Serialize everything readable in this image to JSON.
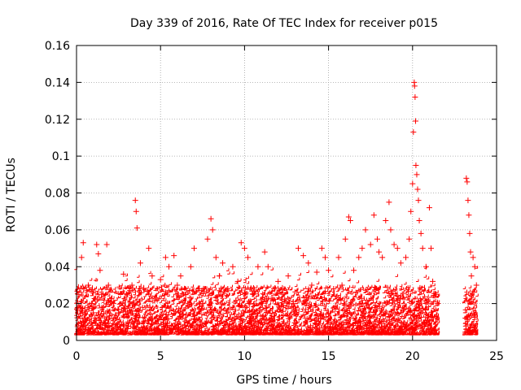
{
  "chart_data": {
    "type": "scatter",
    "title": "Day 339 of 2016, Rate Of TEC Index for receiver p015",
    "xlabel": "GPS time / hours",
    "ylabel": "ROTI / TECUs",
    "xlim": [
      0,
      25
    ],
    "ylim": [
      0,
      0.16
    ],
    "xticks": [
      0,
      5,
      10,
      15,
      20,
      25
    ],
    "xtick_labels": [
      "0",
      "5",
      "10",
      "15",
      "20",
      "25"
    ],
    "yticks": [
      0,
      0.02,
      0.04,
      0.06,
      0.08,
      0.1,
      0.12,
      0.14,
      0.16
    ],
    "ytick_labels": [
      "0",
      "0.02",
      "0.04",
      "0.06",
      "0.08",
      "0.1",
      "0.12",
      "0.14",
      "0.16"
    ],
    "grid": true,
    "marker": "+",
    "color": "#ff0000",
    "series": [
      {
        "points": [
          [
            0.1,
            0.025
          ],
          [
            0.2,
            0.018
          ],
          [
            0.3,
            0.045
          ],
          [
            0.4,
            0.053
          ],
          [
            0.5,
            0.012
          ],
          [
            0.7,
            0.03
          ],
          [
            0.9,
            0.02
          ],
          [
            1.0,
            0.015
          ],
          [
            1.2,
            0.052
          ],
          [
            1.3,
            0.047
          ],
          [
            1.4,
            0.038
          ],
          [
            1.5,
            0.025
          ],
          [
            1.8,
            0.052
          ],
          [
            1.9,
            0.03
          ],
          [
            2.2,
            0.02
          ],
          [
            2.5,
            0.015
          ],
          [
            2.8,
            0.036
          ],
          [
            3.0,
            0.025
          ],
          [
            3.3,
            0.03
          ],
          [
            3.5,
            0.076
          ],
          [
            3.55,
            0.07
          ],
          [
            3.6,
            0.061
          ],
          [
            3.8,
            0.042
          ],
          [
            4.0,
            0.028
          ],
          [
            4.3,
            0.05
          ],
          [
            4.5,
            0.035
          ],
          [
            4.8,
            0.022
          ],
          [
            5.0,
            0.033
          ],
          [
            5.3,
            0.045
          ],
          [
            5.5,
            0.04
          ],
          [
            5.8,
            0.046
          ],
          [
            6.0,
            0.03
          ],
          [
            6.2,
            0.035
          ],
          [
            6.5,
            0.025
          ],
          [
            6.8,
            0.04
          ],
          [
            7.0,
            0.05
          ],
          [
            7.3,
            0.028
          ],
          [
            7.5,
            0.02
          ],
          [
            7.8,
            0.055
          ],
          [
            8.0,
            0.066
          ],
          [
            8.1,
            0.06
          ],
          [
            8.3,
            0.045
          ],
          [
            8.5,
            0.035
          ],
          [
            8.7,
            0.042
          ],
          [
            9.0,
            0.028
          ],
          [
            9.3,
            0.04
          ],
          [
            9.6,
            0.032
          ],
          [
            9.8,
            0.053
          ],
          [
            10.0,
            0.05
          ],
          [
            10.2,
            0.045
          ],
          [
            10.5,
            0.025
          ],
          [
            10.8,
            0.04
          ],
          [
            11.0,
            0.02
          ],
          [
            11.2,
            0.048
          ],
          [
            11.4,
            0.04
          ],
          [
            11.7,
            0.022
          ],
          [
            12.0,
            0.032
          ],
          [
            12.3,
            0.025
          ],
          [
            12.6,
            0.035
          ],
          [
            12.9,
            0.02
          ],
          [
            13.2,
            0.05
          ],
          [
            13.5,
            0.046
          ],
          [
            13.8,
            0.042
          ],
          [
            14.0,
            0.03
          ],
          [
            14.3,
            0.037
          ],
          [
            14.6,
            0.05
          ],
          [
            14.8,
            0.045
          ],
          [
            15.0,
            0.038
          ],
          [
            15.3,
            0.028
          ],
          [
            15.6,
            0.045
          ],
          [
            15.8,
            0.03
          ],
          [
            16.0,
            0.055
          ],
          [
            16.2,
            0.067
          ],
          [
            16.3,
            0.065
          ],
          [
            16.5,
            0.038
          ],
          [
            16.8,
            0.045
          ],
          [
            17.0,
            0.05
          ],
          [
            17.2,
            0.06
          ],
          [
            17.5,
            0.052
          ],
          [
            17.7,
            0.068
          ],
          [
            17.9,
            0.055
          ],
          [
            18.0,
            0.048
          ],
          [
            18.2,
            0.045
          ],
          [
            18.4,
            0.065
          ],
          [
            18.6,
            0.075
          ],
          [
            18.7,
            0.06
          ],
          [
            18.9,
            0.052
          ],
          [
            19.1,
            0.05
          ],
          [
            19.3,
            0.042
          ],
          [
            19.6,
            0.045
          ],
          [
            19.8,
            0.055
          ],
          [
            19.9,
            0.07
          ],
          [
            20.0,
            0.085
          ],
          [
            20.05,
            0.113
          ],
          [
            20.1,
            0.14
          ],
          [
            20.12,
            0.138
          ],
          [
            20.15,
            0.132
          ],
          [
            20.18,
            0.119
          ],
          [
            20.2,
            0.095
          ],
          [
            20.25,
            0.09
          ],
          [
            20.3,
            0.082
          ],
          [
            20.35,
            0.076
          ],
          [
            20.4,
            0.065
          ],
          [
            20.5,
            0.058
          ],
          [
            20.6,
            0.05
          ],
          [
            20.8,
            0.04
          ],
          [
            21.0,
            0.072
          ],
          [
            21.1,
            0.05
          ],
          [
            21.2,
            0.032
          ],
          [
            21.4,
            0.025
          ],
          [
            21.5,
            0.02
          ],
          [
            23.2,
            0.088
          ],
          [
            23.25,
            0.086
          ],
          [
            23.3,
            0.076
          ],
          [
            23.35,
            0.068
          ],
          [
            23.4,
            0.058
          ],
          [
            23.45,
            0.048
          ],
          [
            23.5,
            0.035
          ],
          [
            23.6,
            0.045
          ],
          [
            23.7,
            0.04
          ],
          [
            23.8,
            0.03
          ]
        ]
      }
    ]
  }
}
